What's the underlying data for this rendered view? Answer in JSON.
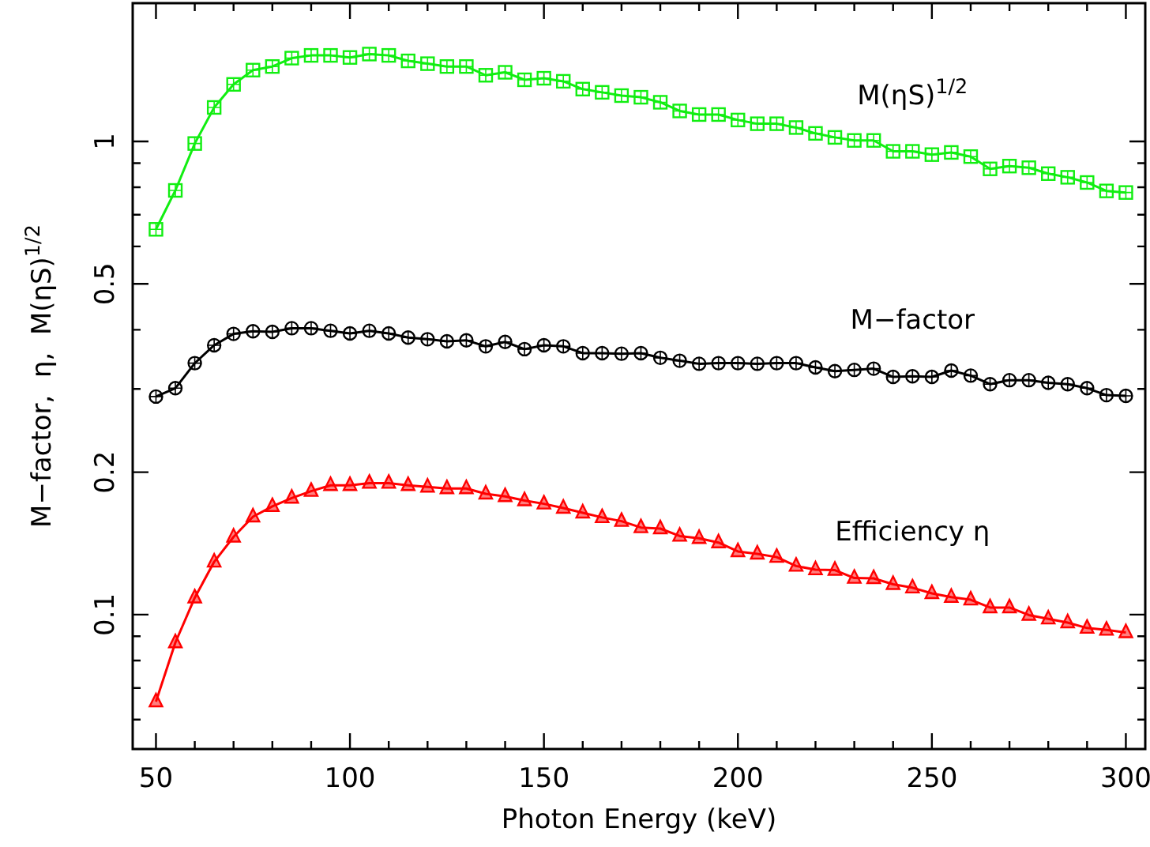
{
  "chart_data": {
    "type": "line",
    "xlabel": "Photon Energy (keV)",
    "ylabel": "M−factor,  η,  M(ηS)$^{1/2}$",
    "log": "y",
    "xlim": [
      44,
      305
    ],
    "ylim": [
      0.052,
      1.96
    ],
    "xticks": [
      50,
      {
        "value": 60,
        "label": null
      },
      {
        "value": 70,
        "label": null
      },
      {
        "value": 80,
        "label": null
      },
      {
        "value": 90,
        "label": null
      },
      100,
      {
        "value": 110,
        "label": null
      },
      {
        "value": 120,
        "label": null
      },
      {
        "value": 130,
        "label": null
      },
      {
        "value": 140,
        "label": null
      },
      150,
      {
        "value": 160,
        "label": null
      },
      {
        "value": 170,
        "label": null
      },
      {
        "value": 180,
        "label": null
      },
      {
        "value": 190,
        "label": null
      },
      200,
      {
        "value": 210,
        "label": null
      },
      {
        "value": 220,
        "label": null
      },
      {
        "value": 230,
        "label": null
      },
      {
        "value": 240,
        "label": null
      },
      250,
      {
        "value": 260,
        "label": null
      },
      {
        "value": 270,
        "label": null
      },
      {
        "value": 280,
        "label": null
      },
      {
        "value": 290,
        "label": null
      },
      300
    ],
    "yticks": [
      {
        "value": 0.06,
        "label": null
      },
      {
        "value": 0.07,
        "label": null
      },
      {
        "value": 0.08,
        "label": null
      },
      {
        "value": 0.09,
        "label": null
      },
      0.1,
      0.2,
      {
        "value": 0.3,
        "label": null
      },
      {
        "value": 0.4,
        "label": null
      },
      0.5,
      {
        "value": 0.6,
        "label": null
      },
      {
        "value": 0.7,
        "label": null
      },
      {
        "value": 0.8,
        "label": null
      },
      {
        "value": 0.9,
        "label": null
      },
      1
    ],
    "x": [
      50,
      55,
      60,
      65,
      70,
      75,
      80,
      85,
      90,
      95,
      100,
      105,
      110,
      115,
      120,
      125,
      130,
      135,
      140,
      145,
      150,
      155,
      160,
      165,
      170,
      175,
      180,
      185,
      190,
      195,
      200,
      205,
      210,
      215,
      220,
      225,
      230,
      235,
      240,
      245,
      250,
      255,
      260,
      265,
      270,
      275,
      280,
      285,
      290,
      295,
      300
    ],
    "series": [
      {
        "name": "M(ηS)$^{1/2}$",
        "color": "#11ee11",
        "marker": "square",
        "values": [
          0.652,
          0.788,
          0.99,
          1.18,
          1.32,
          1.415,
          1.44,
          1.5,
          1.52,
          1.52,
          1.505,
          1.53,
          1.52,
          1.48,
          1.46,
          1.44,
          1.44,
          1.38,
          1.4,
          1.35,
          1.36,
          1.34,
          1.29,
          1.27,
          1.25,
          1.24,
          1.21,
          1.16,
          1.14,
          1.14,
          1.11,
          1.09,
          1.09,
          1.07,
          1.04,
          1.02,
          1.005,
          1.005,
          0.953,
          0.953,
          0.938,
          0.948,
          0.929,
          0.875,
          0.887,
          0.88,
          0.855,
          0.84,
          0.819,
          0.786,
          0.78
        ]
      },
      {
        "name": "M−factor",
        "color": "#000000",
        "marker": "circle",
        "values": [
          0.289,
          0.301,
          0.34,
          0.371,
          0.392,
          0.397,
          0.396,
          0.403,
          0.403,
          0.398,
          0.393,
          0.398,
          0.393,
          0.385,
          0.382,
          0.378,
          0.38,
          0.369,
          0.377,
          0.364,
          0.371,
          0.369,
          0.357,
          0.357,
          0.356,
          0.357,
          0.349,
          0.344,
          0.339,
          0.34,
          0.34,
          0.339,
          0.34,
          0.34,
          0.333,
          0.327,
          0.329,
          0.331,
          0.318,
          0.319,
          0.318,
          0.328,
          0.32,
          0.307,
          0.313,
          0.313,
          0.309,
          0.307,
          0.301,
          0.291,
          0.29
        ]
      },
      {
        "name": "Efficiency η",
        "color": "#ff0000",
        "marker": "triangle",
        "values": [
          0.0655,
          0.0873,
          0.1086,
          0.1293,
          0.146,
          0.161,
          0.1694,
          0.1764,
          0.1824,
          0.1876,
          0.1876,
          0.1897,
          0.1897,
          0.1876,
          0.1862,
          0.1848,
          0.1848,
          0.18,
          0.1778,
          0.1742,
          0.1715,
          0.168,
          0.1642,
          0.1605,
          0.1576,
          0.1528,
          0.152,
          0.1466,
          0.145,
          0.142,
          0.136,
          0.1344,
          0.1323,
          0.1267,
          0.1245,
          0.1242,
          0.1195,
          0.1193,
          0.1159,
          0.114,
          0.1109,
          0.1089,
          0.1075,
          0.1035,
          0.1035,
          0.0998,
          0.098,
          0.0962,
          0.0937,
          0.0928,
          0.0917
        ]
      }
    ]
  }
}
